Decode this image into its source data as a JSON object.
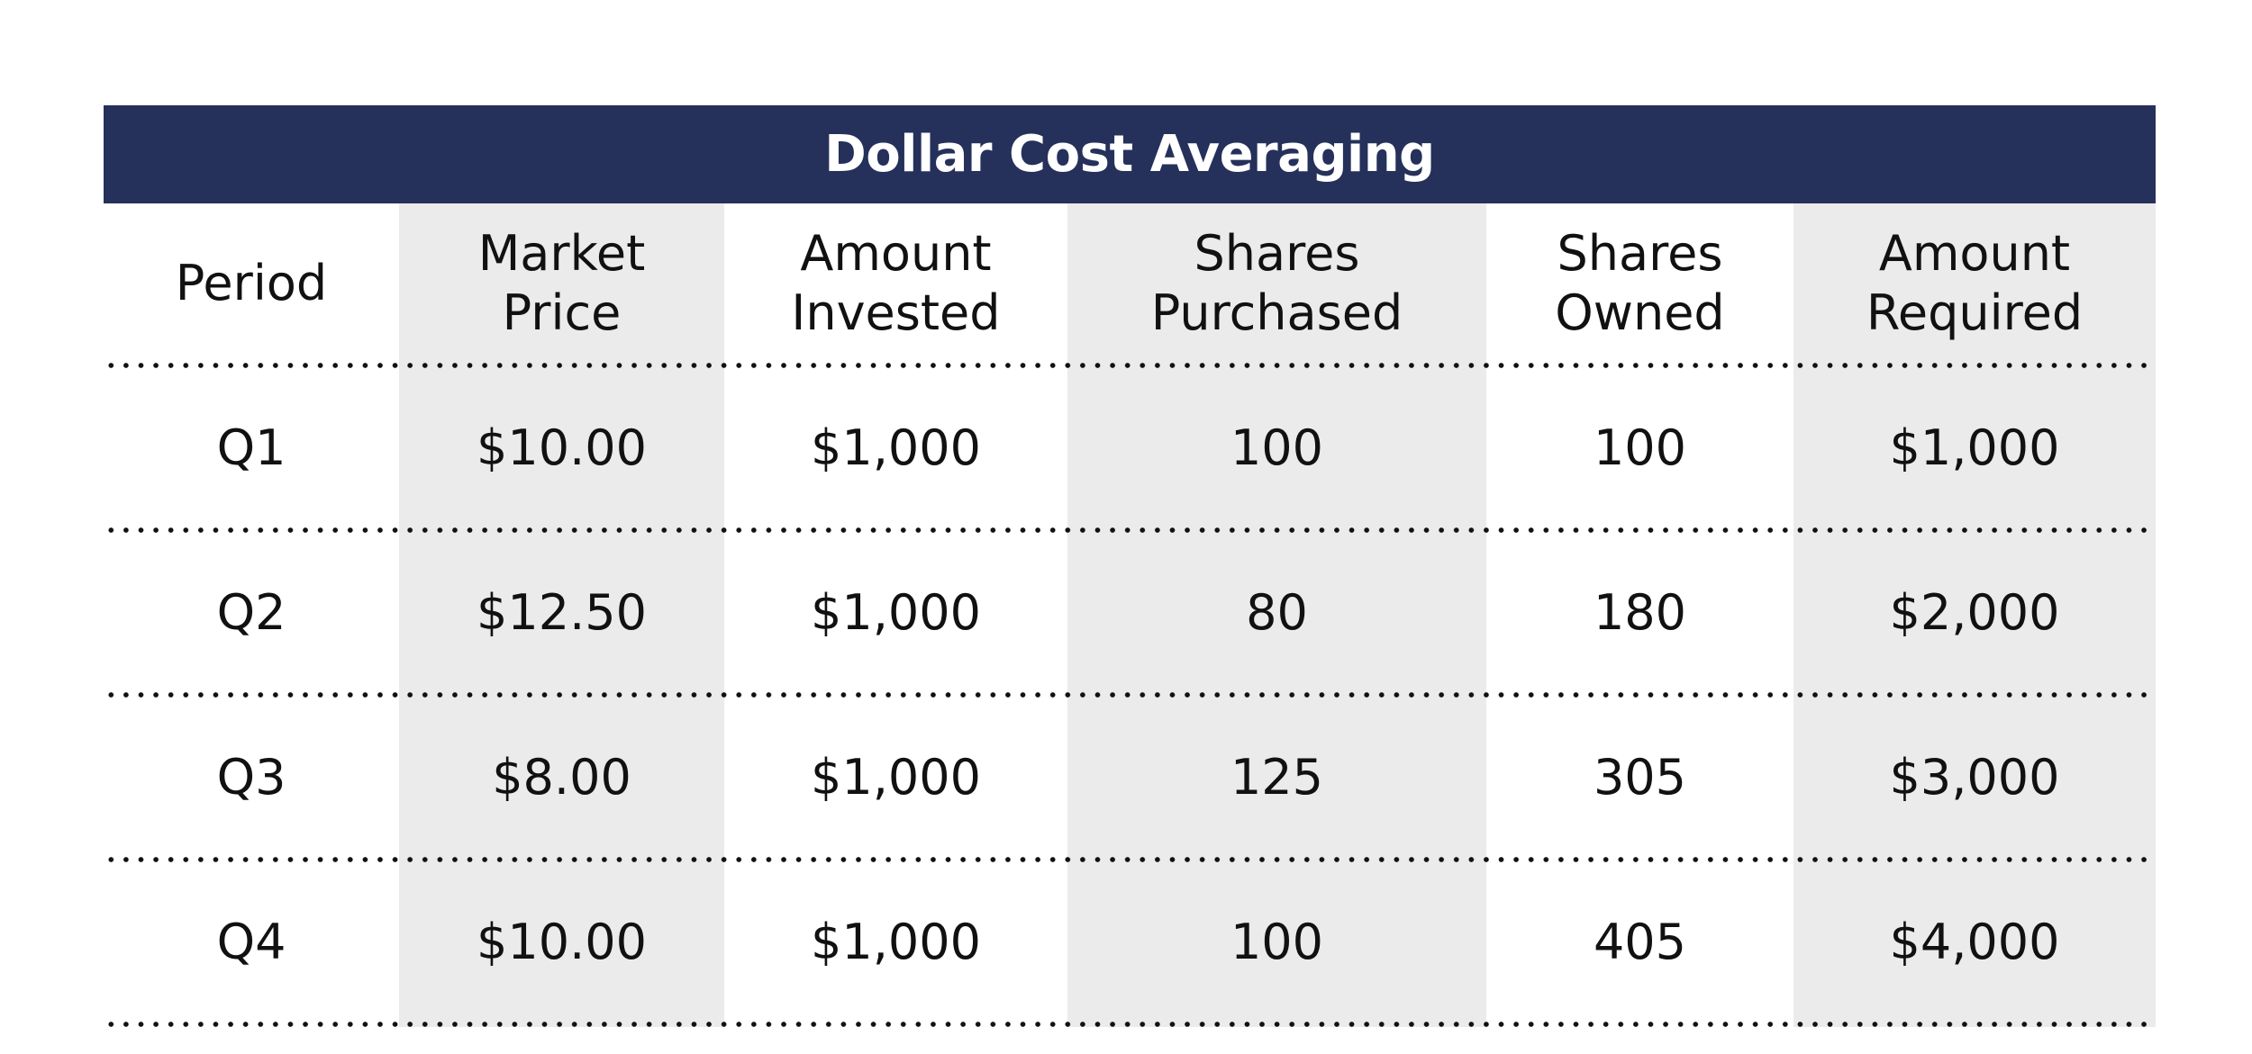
{
  "chart_data": {
    "type": "table",
    "title": "Dollar Cost Averaging",
    "columns": [
      [
        "Period"
      ],
      [
        "Market",
        "Price"
      ],
      [
        "Amount",
        "Invested"
      ],
      [
        "Shares",
        "Purchased"
      ],
      [
        "Shares",
        "Owned"
      ],
      [
        "Amount",
        "Required"
      ]
    ],
    "rows": [
      [
        "Q1",
        "$10.00",
        "$1,000",
        "100",
        "100",
        "$1,000"
      ],
      [
        "Q2",
        "$12.50",
        "$1,000",
        "80",
        "180",
        "$2,000"
      ],
      [
        "Q3",
        "$8.00",
        "$1,000",
        "125",
        "305",
        "$3,000"
      ],
      [
        "Q4",
        "$10.00",
        "$1,000",
        "100",
        "405",
        "$4,000"
      ]
    ],
    "title_bar_color": "#25315a",
    "alternate_column_color": "#ebebeb",
    "divider_style": "dotted"
  }
}
